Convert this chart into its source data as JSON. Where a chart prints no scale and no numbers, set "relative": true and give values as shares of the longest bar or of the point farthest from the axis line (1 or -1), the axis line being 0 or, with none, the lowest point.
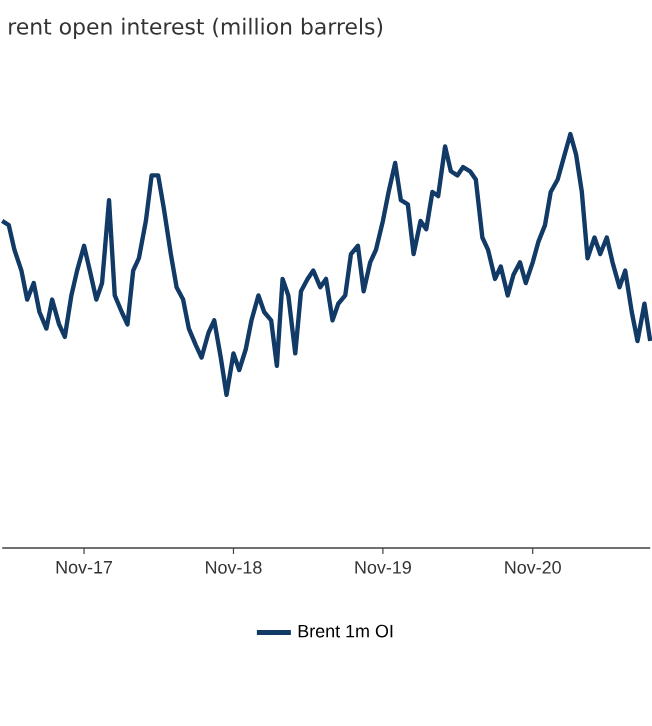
{
  "chart_data": {
    "type": "line",
    "title": "rent open interest (million barrels)",
    "relative": true,
    "marker": "none",
    "legend": "bottom",
    "x": [
      "2017-04-15",
      "2017-05-01",
      "2017-05-15",
      "2017-06-01",
      "2017-06-15",
      "2017-07-01",
      "2017-07-15",
      "2017-08-01",
      "2017-08-15",
      "2017-09-01",
      "2017-09-15",
      "2017-10-01",
      "2017-10-15",
      "2017-11-01",
      "2017-11-15",
      "2017-12-01",
      "2017-12-15",
      "2018-01-01",
      "2018-01-15",
      "2018-02-01",
      "2018-02-15",
      "2018-03-01",
      "2018-03-15",
      "2018-04-01",
      "2018-04-15",
      "2018-05-01",
      "2018-05-15",
      "2018-06-01",
      "2018-06-15",
      "2018-07-01",
      "2018-07-15",
      "2018-08-01",
      "2018-08-15",
      "2018-09-01",
      "2018-09-15",
      "2018-10-01",
      "2018-10-15",
      "2018-11-01",
      "2018-11-15",
      "2018-12-01",
      "2018-12-15",
      "2019-01-01",
      "2019-01-15",
      "2019-02-01",
      "2019-02-15",
      "2019-03-01",
      "2019-03-15",
      "2019-04-01",
      "2019-04-15",
      "2019-05-01",
      "2019-05-15",
      "2019-06-01",
      "2019-06-15",
      "2019-07-01",
      "2019-07-15",
      "2019-08-01",
      "2019-08-15",
      "2019-09-01",
      "2019-09-15",
      "2019-10-01",
      "2019-10-15",
      "2019-11-01",
      "2019-11-15",
      "2019-12-01",
      "2019-12-15",
      "2020-01-01",
      "2020-01-15",
      "2020-02-01",
      "2020-02-15",
      "2020-03-01",
      "2020-03-15",
      "2020-04-01",
      "2020-04-15",
      "2020-05-01",
      "2020-05-15",
      "2020-06-01",
      "2020-06-15",
      "2020-07-01",
      "2020-07-15",
      "2020-08-01",
      "2020-08-15",
      "2020-09-01",
      "2020-09-15",
      "2020-10-01",
      "2020-10-15",
      "2020-11-01",
      "2020-11-15",
      "2020-12-01",
      "2020-12-15",
      "2021-01-01",
      "2021-01-15",
      "2021-02-01",
      "2021-02-15",
      "2021-03-01",
      "2021-03-15",
      "2021-04-01",
      "2021-04-15",
      "2021-05-01",
      "2021-05-15",
      "2021-06-01",
      "2021-06-15",
      "2021-07-01",
      "2021-07-15",
      "2021-08-01",
      "2021-08-15"
    ],
    "xlim": [
      "2017-04-15",
      "2021-08-15"
    ],
    "xticks": [
      {
        "value": "2017-11-01",
        "label": "Nov-17"
      },
      {
        "value": "2018-11-01",
        "label": "Nov-18"
      },
      {
        "value": "2019-11-01",
        "label": "Nov-19"
      },
      {
        "value": "2020-11-01",
        "label": "Nov-20"
      }
    ],
    "series": [
      {
        "name": "Brent 1m OI",
        "color": "#123a66",
        "values": [
          0.79,
          0.78,
          0.72,
          0.67,
          0.6,
          0.64,
          0.57,
          0.53,
          0.6,
          0.54,
          0.51,
          0.61,
          0.67,
          0.73,
          0.67,
          0.6,
          0.64,
          0.84,
          0.61,
          0.57,
          0.54,
          0.67,
          0.7,
          0.79,
          0.9,
          0.9,
          0.82,
          0.71,
          0.63,
          0.6,
          0.53,
          0.49,
          0.46,
          0.52,
          0.55,
          0.46,
          0.37,
          0.47,
          0.43,
          0.48,
          0.55,
          0.61,
          0.57,
          0.55,
          0.44,
          0.65,
          0.61,
          0.47,
          0.62,
          0.65,
          0.67,
          0.63,
          0.65,
          0.55,
          0.59,
          0.61,
          0.71,
          0.73,
          0.62,
          0.69,
          0.72,
          0.79,
          0.86,
          0.93,
          0.84,
          0.83,
          0.71,
          0.79,
          0.77,
          0.86,
          0.85,
          0.97,
          0.91,
          0.9,
          0.92,
          0.91,
          0.89,
          0.75,
          0.72,
          0.65,
          0.68,
          0.61,
          0.66,
          0.69,
          0.64,
          0.69,
          0.74,
          0.78,
          0.86,
          0.89,
          0.94,
          1,
          0.95,
          0.86,
          0.7,
          0.75,
          0.71,
          0.75,
          0.69,
          0.63,
          0.67,
          0.57,
          0.5,
          0.59,
          0.5
        ]
      }
    ]
  }
}
